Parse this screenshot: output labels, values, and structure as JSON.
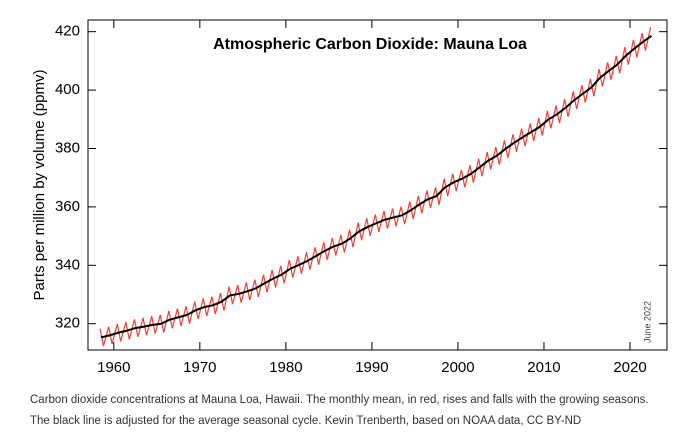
{
  "chart_data": {
    "type": "line",
    "title": "Atmospheric Carbon Dioxide: Mauna Loa",
    "y_label": "Parts per million by volume (ppmv)",
    "annotation": "June 2022",
    "caption": [
      "Carbon dioxide concentrations at Mauna Loa, Hawaii. The monthly mean, in red, rises and falls with the growing seasons.",
      "The black line is adjusted for the average seasonal cycle. Kevin Trenberth, based on NOAA data, CC BY-ND"
    ],
    "xlim": [
      1957,
      2024.3
    ],
    "xticks": [
      1960,
      1970,
      1980,
      1990,
      2000,
      2010,
      2020
    ],
    "ylim": [
      311,
      424
    ],
    "yticks": [
      320,
      340,
      360,
      380,
      400,
      420
    ],
    "series": [
      {
        "color": "#e8433a",
        "x": [
          1958.4,
          1958.8,
          1959.4,
          1959.8,
          1960.4,
          1960.8,
          1961.4,
          1961.8,
          1962.4,
          1962.8,
          1963.4,
          1963.8,
          1964.4,
          1964.8,
          1965.4,
          1965.8,
          1966.4,
          1966.8,
          1967.4,
          1967.8,
          1968.4,
          1968.8,
          1969.4,
          1969.8,
          1970.4,
          1970.8,
          1971.4,
          1971.8,
          1972.4,
          1972.8,
          1973.4,
          1973.8,
          1974.4,
          1974.8,
          1975.4,
          1975.8,
          1976.4,
          1976.8,
          1977.4,
          1977.8,
          1978.4,
          1978.8,
          1979.4,
          1979.8,
          1980.4,
          1980.8,
          1981.4,
          1981.8,
          1982.4,
          1982.8,
          1983.4,
          1983.8,
          1984.4,
          1984.8,
          1985.4,
          1985.8,
          1986.4,
          1986.8,
          1987.4,
          1987.8,
          1988.4,
          1988.8,
          1989.4,
          1989.8,
          1990.4,
          1990.8,
          1991.4,
          1991.8,
          1992.4,
          1992.8,
          1993.4,
          1993.8,
          1994.4,
          1994.8,
          1995.4,
          1995.8,
          1996.4,
          1996.8,
          1997.4,
          1997.8,
          1998.4,
          1998.8,
          1999.4,
          1999.8,
          2000.4,
          2000.8,
          2001.4,
          2001.8,
          2002.4,
          2002.8,
          2003.4,
          2003.8,
          2004.4,
          2004.8,
          2005.4,
          2005.8,
          2006.4,
          2006.8,
          2007.4,
          2007.8,
          2008.4,
          2008.8,
          2009.4,
          2009.8,
          2010.4,
          2010.8,
          2011.4,
          2011.8,
          2012.4,
          2012.8,
          2013.4,
          2013.8,
          2014.4,
          2014.8,
          2015.4,
          2015.8,
          2016.4,
          2016.8,
          2017.4,
          2017.8,
          2018.4,
          2018.8,
          2019.4,
          2019.8,
          2020.4,
          2020.8,
          2021.4,
          2021.8,
          2022.4
        ],
        "values": [
          318.3,
          312.3,
          319.0,
          313.0,
          319.9,
          313.9,
          320.6,
          314.6,
          321.5,
          315.5,
          322.0,
          316.0,
          322.6,
          316.6,
          323.0,
          317.0,
          324.4,
          318.4,
          325.2,
          319.2,
          326.0,
          320.0,
          327.6,
          321.6,
          328.7,
          322.7,
          329.3,
          323.3,
          330.5,
          324.5,
          332.7,
          326.7,
          333.2,
          327.2,
          334.1,
          328.1,
          335.1,
          329.1,
          336.8,
          330.8,
          338.4,
          332.4,
          339.8,
          333.8,
          341.8,
          335.8,
          343.1,
          337.1,
          344.5,
          338.5,
          346.2,
          340.2,
          347.9,
          341.9,
          349.4,
          343.4,
          350.4,
          344.4,
          352.2,
          346.2,
          354.6,
          348.6,
          356.1,
          350.1,
          357.4,
          351.4,
          358.6,
          352.6,
          359.4,
          353.4,
          360.1,
          354.1,
          361.8,
          355.8,
          363.8,
          357.8,
          365.6,
          359.6,
          366.7,
          360.7,
          369.7,
          363.7,
          371.4,
          365.4,
          372.7,
          366.7,
          374.3,
          368.3,
          376.5,
          370.5,
          378.8,
          372.8,
          380.5,
          374.5,
          382.8,
          376.8,
          384.9,
          378.9,
          386.8,
          380.8,
          388.6,
          382.6,
          390.4,
          384.4,
          392.9,
          386.9,
          394.7,
          388.7,
          396.9,
          390.9,
          399.5,
          393.5,
          401.7,
          395.7,
          403.9,
          397.9,
          407.2,
          401.2,
          409.5,
          403.5,
          411.7,
          405.7,
          414.7,
          408.7,
          417.2,
          411.2,
          419.5,
          413.5,
          421.6
        ]
      },
      {
        "color": "#000000",
        "x": [
          1958.5,
          1959.5,
          1960.5,
          1961.5,
          1962.5,
          1963.5,
          1964.5,
          1965.5,
          1966.5,
          1967.5,
          1968.5,
          1969.5,
          1970.5,
          1971.5,
          1972.5,
          1973.5,
          1974.5,
          1975.5,
          1976.5,
          1977.5,
          1978.5,
          1979.5,
          1980.5,
          1981.5,
          1982.5,
          1983.5,
          1984.5,
          1985.5,
          1986.5,
          1987.5,
          1988.5,
          1989.5,
          1990.5,
          1991.5,
          1992.5,
          1993.5,
          1994.5,
          1995.5,
          1996.5,
          1997.5,
          1998.5,
          1999.5,
          2000.5,
          2001.5,
          2002.5,
          2003.5,
          2004.5,
          2005.5,
          2006.5,
          2007.5,
          2008.5,
          2009.5,
          2010.5,
          2011.5,
          2012.5,
          2013.5,
          2014.5,
          2015.5,
          2016.5,
          2017.5,
          2018.5,
          2019.5,
          2020.5,
          2021.5,
          2022.5
        ],
        "values": [
          315.3,
          316.0,
          316.9,
          317.6,
          318.5,
          319.0,
          319.6,
          320.0,
          321.4,
          322.2,
          323.0,
          324.6,
          325.7,
          326.3,
          327.5,
          329.7,
          330.2,
          331.1,
          332.1,
          333.8,
          335.4,
          336.8,
          338.8,
          340.1,
          341.5,
          343.2,
          344.9,
          346.4,
          347.4,
          349.2,
          351.6,
          353.1,
          354.4,
          355.6,
          356.4,
          357.1,
          358.8,
          360.8,
          362.6,
          363.7,
          366.7,
          368.4,
          369.7,
          371.3,
          373.5,
          375.8,
          377.5,
          379.8,
          381.9,
          383.8,
          385.6,
          387.4,
          389.9,
          391.7,
          393.9,
          396.5,
          398.7,
          400.9,
          404.2,
          406.5,
          408.7,
          411.7,
          414.2,
          416.5,
          418.6
        ]
      }
    ]
  }
}
